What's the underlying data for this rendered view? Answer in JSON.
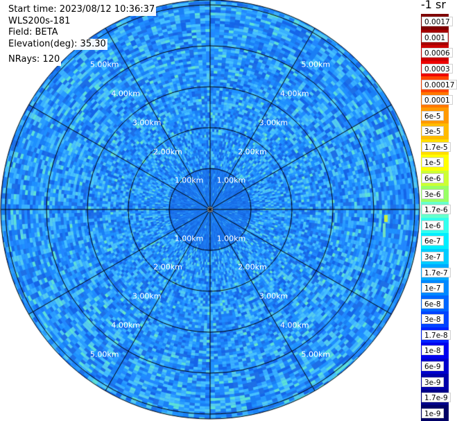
{
  "info": {
    "start_time": "Start time: 2023/08/12 10:36:37",
    "instrument": "WLS200s-181",
    "field": "Field: BETA",
    "elevation": "Elevation(deg): 35.30",
    "nrays": "NRays: 120"
  },
  "range_ring_labels": [
    "1.00km",
    "2.00km",
    "3.00km",
    "4.00km",
    "5.00km"
  ],
  "colorbar": {
    "unit": "-1 sr",
    "labels": [
      "0.0017",
      "0.001",
      "0.0006",
      "0.0003",
      "0.00017",
      "0.0001",
      "6e-5",
      "3e-5",
      "1.7e-5",
      "1e-5",
      "6e-6",
      "3e-6",
      "1.7e-6",
      "1e-6",
      "6e-7",
      "3e-7",
      "1.7e-7",
      "1e-7",
      "6e-8",
      "3e-8",
      "1.7e-8",
      "1e-8",
      "6e-9",
      "3e-9",
      "1.7e-9",
      "1e-9"
    ],
    "colors": [
      "#7f0000",
      "#a50000",
      "#cc0000",
      "#ee0000",
      "#ff4400",
      "#ff7700",
      "#ff9900",
      "#ffbb00",
      "#ffdd00",
      "#ffff00",
      "#ccff33",
      "#99ff66",
      "#66ffcc",
      "#33ffee",
      "#00eeff",
      "#00ccff",
      "#00aaff",
      "#0088ff",
      "#0066ff",
      "#0044ff",
      "#0022ff",
      "#0000ee",
      "#0000cc",
      "#0000aa",
      "#000088",
      "#000066"
    ]
  }
}
